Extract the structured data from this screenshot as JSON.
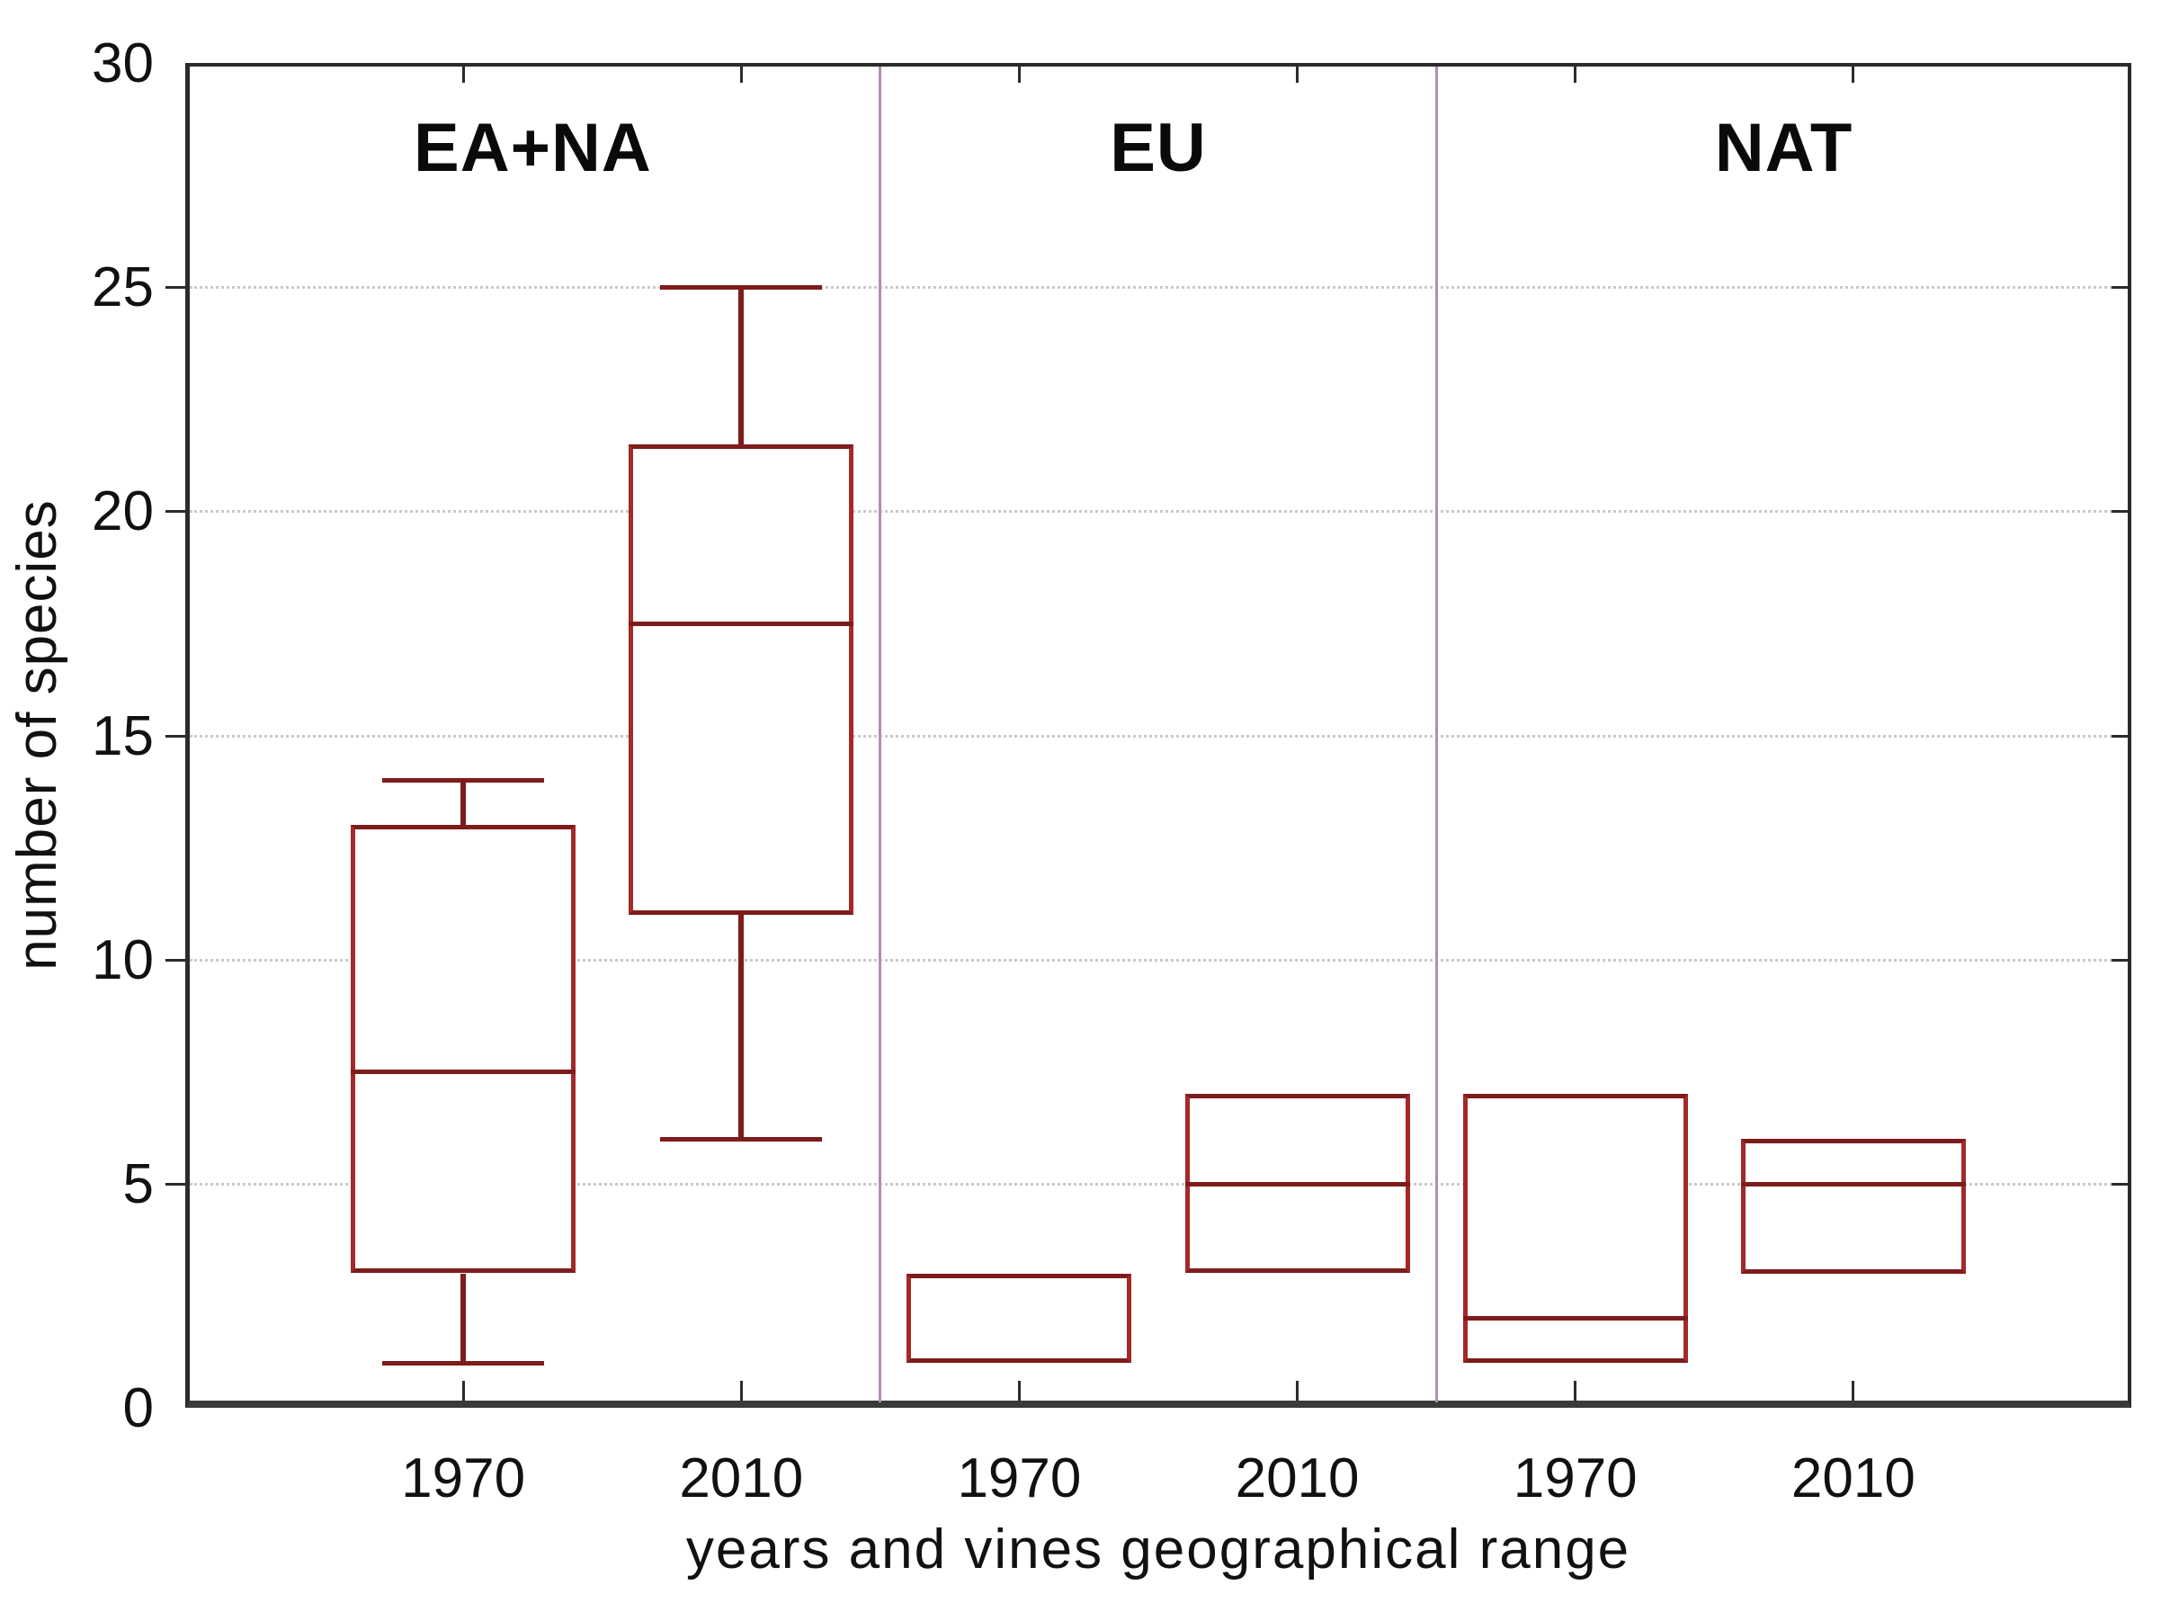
{
  "chart_data": {
    "type": "boxplot",
    "title": "",
    "xlabel": "years and vines geographical range",
    "ylabel": "number of species",
    "ylim": [
      0,
      30
    ],
    "y_ticks": [
      0,
      5,
      10,
      15,
      20,
      25,
      30
    ],
    "grid": "horizontal dotted gridlines at 5, 10, 15, 20, 25",
    "legend_position": "none",
    "groups": [
      {
        "label": "EA+NA",
        "boxes": [
          {
            "x_label": "1970",
            "whisker_low": 1,
            "q1": 3,
            "median": 7.5,
            "q3": 13,
            "whisker_high": 14
          },
          {
            "x_label": "2010",
            "whisker_low": 6,
            "q1": 11,
            "median": 17.5,
            "q3": 21.5,
            "whisker_high": 25
          }
        ]
      },
      {
        "label": "EU",
        "boxes": [
          {
            "x_label": "1970",
            "whisker_low": null,
            "q1": 1,
            "median": null,
            "q3": 3,
            "whisker_high": null
          },
          {
            "x_label": "2010",
            "whisker_low": null,
            "q1": 3,
            "median": 5,
            "q3": 7,
            "whisker_high": null
          }
        ]
      },
      {
        "label": "NAT",
        "boxes": [
          {
            "x_label": "1970",
            "whisker_low": null,
            "q1": 1,
            "median": 2,
            "q3": 7,
            "whisker_high": null
          },
          {
            "x_label": "2010",
            "whisker_low": null,
            "q1": 3,
            "median": 5,
            "q3": 6,
            "whisker_high": null
          }
        ]
      }
    ]
  },
  "colors": {
    "box_stroke": "#7e1c1c",
    "box_side_stroke": "#a62828",
    "whisker": "#7e1c1c",
    "panel_separator": "#b48cb4",
    "gridline": "#c9c9c9",
    "axis_frame": "#2b2b2b",
    "text": "#111111",
    "background": "#ffffff"
  }
}
